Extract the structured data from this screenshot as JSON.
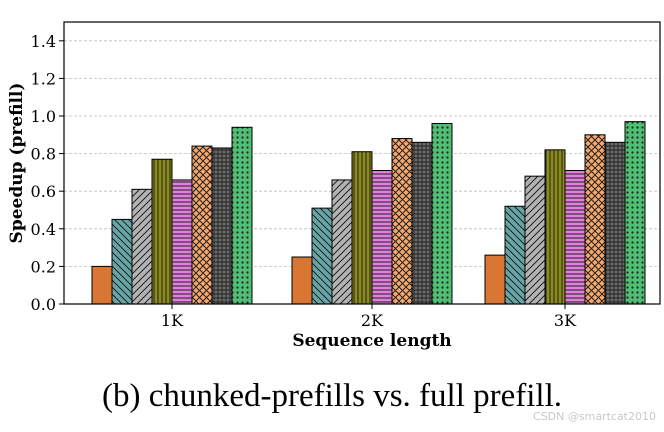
{
  "chart_data": {
    "type": "bar",
    "title": "",
    "xlabel": "Sequence length",
    "ylabel": "Speedup (prefill)",
    "categories": [
      "1K",
      "2K",
      "3K"
    ],
    "ylim": [
      0,
      1.5
    ],
    "yticks": [
      "0.0",
      "0.2",
      "0.4",
      "0.6",
      "0.8",
      "1.0",
      "1.2",
      "1.4"
    ],
    "ytick_values": [
      0,
      0.2,
      0.4,
      0.6,
      0.8,
      1.0,
      1.2,
      1.4
    ],
    "grid": true,
    "legend": "none",
    "series": [
      {
        "name": "series-1",
        "color": "#d97634",
        "pattern": "solid",
        "values": [
          0.2,
          0.25,
          0.26
        ]
      },
      {
        "name": "series-2",
        "color": "#66a6a6",
        "pattern": "diag-back",
        "values": [
          0.45,
          0.51,
          0.52
        ]
      },
      {
        "name": "series-3",
        "color": "#b3b3b3",
        "pattern": "diag",
        "values": [
          0.61,
          0.66,
          0.68
        ]
      },
      {
        "name": "series-4",
        "color": "#8b8b1a",
        "pattern": "vert",
        "values": [
          0.77,
          0.81,
          0.82
        ]
      },
      {
        "name": "series-5",
        "color": "#e07fdc",
        "pattern": "horiz",
        "values": [
          0.66,
          0.71,
          0.71
        ]
      },
      {
        "name": "series-6",
        "color": "#f5a76c",
        "pattern": "cross",
        "values": [
          0.84,
          0.88,
          0.9
        ]
      },
      {
        "name": "series-7",
        "color": "#6b6b6b",
        "pattern": "grid",
        "values": [
          0.83,
          0.86,
          0.86
        ]
      },
      {
        "name": "series-8",
        "color": "#4fbf73",
        "pattern": "dots",
        "values": [
          0.94,
          0.96,
          0.97
        ]
      }
    ]
  },
  "caption": "(b) chunked-prefills vs. full prefill.",
  "watermark": "CSDN @smartcat2010"
}
